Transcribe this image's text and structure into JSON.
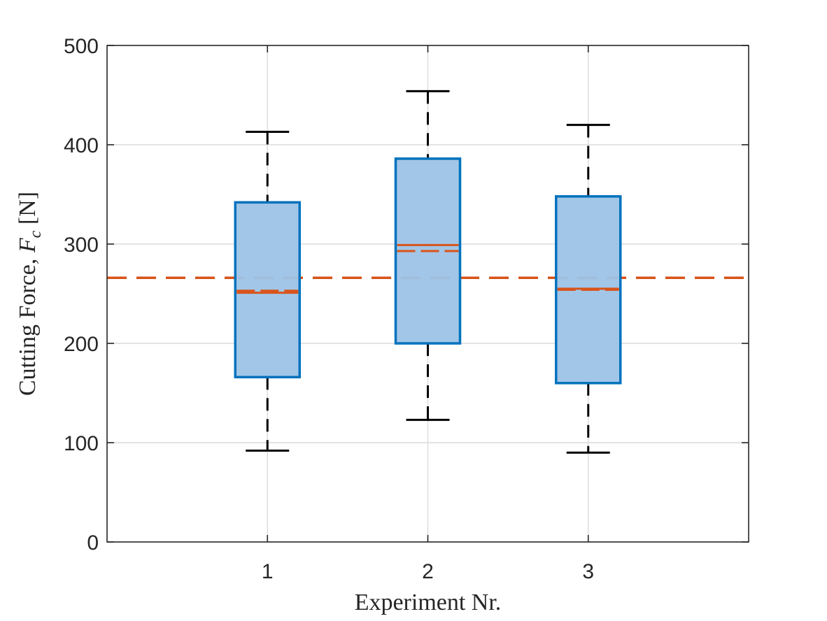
{
  "chart_data": {
    "type": "box",
    "title": "",
    "xlabel": "Experiment Nr.",
    "ylabel_parts": {
      "prefix": "Cutting Force, ",
      "symbol": "F",
      "subscript": "c",
      "suffix": " [N]"
    },
    "ylim": [
      0,
      500
    ],
    "yticks": [
      0,
      100,
      200,
      300,
      400,
      500
    ],
    "yticklabels": [
      "0",
      "100",
      "200",
      "300",
      "400",
      "500"
    ],
    "categories": [
      "1",
      "2",
      "3"
    ],
    "grid": true,
    "reference_line": {
      "value": 266,
      "style": "dashed",
      "color": "#D95319"
    },
    "boxes": [
      {
        "category": "1",
        "whisker_low": 92,
        "q1": 166,
        "median": 251,
        "mean": 253,
        "q3": 342,
        "whisker_high": 413
      },
      {
        "category": "2",
        "whisker_low": 123,
        "q1": 200,
        "median": 299,
        "mean": 293,
        "q3": 386,
        "whisker_high": 454
      },
      {
        "category": "3",
        "whisker_low": 90,
        "q1": 160,
        "median": 255,
        "mean": 254,
        "q3": 348,
        "whisker_high": 420
      }
    ],
    "colors": {
      "box_fill": "#9DC3E6",
      "box_edge": "#0072BD",
      "median": "#D95319",
      "whisker": "#000000"
    }
  }
}
